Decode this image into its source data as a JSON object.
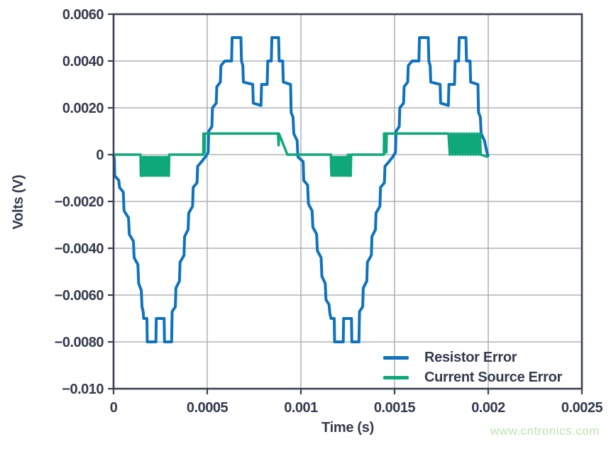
{
  "page": {
    "background": "#FFFFFF"
  },
  "watermark": {
    "text": "www.cntronics.com",
    "color": "#BDE5AE"
  },
  "chart_data": {
    "type": "line",
    "title": "",
    "xlabel": "Time (s)",
    "ylabel": "Volts (V)",
    "xlim": [
      0,
      0.0025
    ],
    "ylim": [
      -0.01,
      0.006
    ],
    "grid": true,
    "legend_position": "lower-right",
    "axis_color": "#3C4254",
    "grid_color": "#A0A4AF",
    "text_color": "#353B4F",
    "xticks": [
      {
        "v": 0,
        "label": "0"
      },
      {
        "v": 0.0005,
        "label": "0.0005"
      },
      {
        "v": 0.001,
        "label": "0.001"
      },
      {
        "v": 0.0015,
        "label": "0.0015"
      },
      {
        "v": 0.002,
        "label": "0.002"
      },
      {
        "v": 0.0025,
        "label": "0.0025"
      }
    ],
    "yticks": [
      {
        "v": 0.006,
        "label": "0.0060"
      },
      {
        "v": 0.004,
        "label": "0.0040"
      },
      {
        "v": 0.002,
        "label": "0.0020"
      },
      {
        "v": 0,
        "label": "0"
      },
      {
        "v": -0.002,
        "label": "−0.0020"
      },
      {
        "v": -0.004,
        "label": "−0.0040"
      },
      {
        "v": -0.006,
        "label": "−0.0060"
      },
      {
        "v": -0.008,
        "label": "−0.0080"
      },
      {
        "v": -0.01,
        "label": "−0.010"
      }
    ],
    "series": [
      {
        "name": "Resistor Error",
        "slug": "resistor-error",
        "color": "#0F72BD",
        "width": 4,
        "points": [
          [
            0,
            0
          ],
          [
            4e-06,
            -0.0002
          ],
          [
            6e-06,
            -0.0009
          ],
          [
            2.8e-05,
            -0.0011
          ],
          [
            3.2e-05,
            -0.0014
          ],
          [
            5.2e-05,
            -0.0016
          ],
          [
            5.6e-05,
            -0.0024
          ],
          [
            8e-05,
            -0.0027
          ],
          [
            8.4e-05,
            -0.0034
          ],
          [
            0.000106,
            -0.0037
          ],
          [
            0.00011,
            -0.0044
          ],
          [
            0.00013,
            -0.0047
          ],
          [
            0.000134,
            -0.0055
          ],
          [
            0.000148,
            -0.0058
          ],
          [
            0.000152,
            -0.0065
          ],
          [
            0.000158,
            -0.0067
          ],
          [
            0.000161,
            -0.007
          ],
          [
            0.000178,
            -0.007
          ],
          [
            0.00018,
            -0.008
          ],
          [
            0.000226,
            -0.008
          ],
          [
            0.000228,
            -0.007
          ],
          [
            0.00027,
            -0.007
          ],
          [
            0.000272,
            -0.008
          ],
          [
            0.00031,
            -0.008
          ],
          [
            0.000313,
            -0.0067
          ],
          [
            0.00033,
            -0.0065
          ],
          [
            0.000333,
            -0.0057
          ],
          [
            0.000352,
            -0.0054
          ],
          [
            0.000355,
            -0.0046
          ],
          [
            0.000376,
            -0.0043
          ],
          [
            0.000379,
            -0.0035
          ],
          [
            0.000398,
            -0.0032
          ],
          [
            0.000401,
            -0.0025
          ],
          [
            0.000422,
            -0.0022
          ],
          [
            0.000425,
            -0.0014
          ],
          [
            0.000446,
            -0.0012
          ],
          [
            0.000449,
            -0.0005
          ],
          [
            0.00047,
            -0.0003
          ],
          [
            0.00049,
            -0.0001
          ],
          [
            0.000505,
            0.0001
          ],
          [
            0.000508,
            0.001
          ],
          [
            0.000525,
            0.0012
          ],
          [
            0.000528,
            0.002
          ],
          [
            0.000548,
            0.0022
          ],
          [
            0.000551,
            0.0029
          ],
          [
            0.00057,
            0.0031
          ],
          [
            0.000573,
            0.0038
          ],
          [
            0.000594,
            0.004
          ],
          [
            0.00063,
            0.004
          ],
          [
            0.000633,
            0.005
          ],
          [
            0.00068,
            0.005
          ],
          [
            0.000683,
            0.004
          ],
          [
            0.00069,
            0.0038
          ],
          [
            0.000693,
            0.0031
          ],
          [
            0.000743,
            0.003
          ],
          [
            0.000746,
            0.0022
          ],
          [
            0.000787,
            0.0021
          ],
          [
            0.00079,
            0.003
          ],
          [
            0.00082,
            0.003
          ],
          [
            0.000823,
            0.004
          ],
          [
            0.000842,
            0.004
          ],
          [
            0.000845,
            0.005
          ],
          [
            0.000881,
            0.005
          ],
          [
            0.000884,
            0.004
          ],
          [
            0.000903,
            0.004
          ],
          [
            0.000906,
            0.0031
          ],
          [
            0.000945,
            0.003
          ],
          [
            0.000948,
            0.0018
          ],
          [
            0.000958,
            0.0016
          ],
          [
            0.000962,
            0.0009
          ],
          [
            0.00098,
            0.0006
          ],
          [
            0.000984,
            -0.0001
          ],
          [
            0.001012,
            -0.0003
          ],
          [
            0.001015,
            -0.0011
          ],
          [
            0.001036,
            -0.0013
          ],
          [
            0.00104,
            -0.0021
          ],
          [
            0.00106,
            -0.0024
          ],
          [
            0.001064,
            -0.0031
          ],
          [
            0.001084,
            -0.0034
          ],
          [
            0.001088,
            -0.0041
          ],
          [
            0.001108,
            -0.0044
          ],
          [
            0.001112,
            -0.0052
          ],
          [
            0.00113,
            -0.0055
          ],
          [
            0.001134,
            -0.0062
          ],
          [
            0.00115,
            -0.0064
          ],
          [
            0.001155,
            -0.0068
          ],
          [
            0.001161,
            -0.007
          ],
          [
            0.001178,
            -0.007
          ],
          [
            0.00118,
            -0.008
          ],
          [
            0.001226,
            -0.008
          ],
          [
            0.001228,
            -0.007
          ],
          [
            0.00127,
            -0.007
          ],
          [
            0.001272,
            -0.008
          ],
          [
            0.00131,
            -0.008
          ],
          [
            0.001313,
            -0.0067
          ],
          [
            0.00133,
            -0.0065
          ],
          [
            0.001333,
            -0.0057
          ],
          [
            0.001352,
            -0.0054
          ],
          [
            0.001355,
            -0.0046
          ],
          [
            0.001376,
            -0.0043
          ],
          [
            0.001379,
            -0.0035
          ],
          [
            0.001398,
            -0.0032
          ],
          [
            0.001401,
            -0.0025
          ],
          [
            0.001422,
            -0.0022
          ],
          [
            0.001425,
            -0.0014
          ],
          [
            0.001446,
            -0.0012
          ],
          [
            0.001449,
            -0.0005
          ],
          [
            0.00147,
            -0.0003
          ],
          [
            0.00149,
            -0.0001
          ],
          [
            0.001505,
            0.0001
          ],
          [
            0.001508,
            0.001
          ],
          [
            0.001525,
            0.0012
          ],
          [
            0.001528,
            0.002
          ],
          [
            0.001548,
            0.0022
          ],
          [
            0.001551,
            0.0029
          ],
          [
            0.00157,
            0.0031
          ],
          [
            0.001573,
            0.0038
          ],
          [
            0.001594,
            0.004
          ],
          [
            0.00163,
            0.004
          ],
          [
            0.001633,
            0.005
          ],
          [
            0.00168,
            0.005
          ],
          [
            0.001683,
            0.004
          ],
          [
            0.00169,
            0.0038
          ],
          [
            0.001693,
            0.0031
          ],
          [
            0.001743,
            0.003
          ],
          [
            0.001746,
            0.0022
          ],
          [
            0.001787,
            0.0021
          ],
          [
            0.00179,
            0.003
          ],
          [
            0.00182,
            0.003
          ],
          [
            0.001823,
            0.004
          ],
          [
            0.001842,
            0.004
          ],
          [
            0.001845,
            0.005
          ],
          [
            0.001881,
            0.005
          ],
          [
            0.001884,
            0.004
          ],
          [
            0.001903,
            0.004
          ],
          [
            0.001906,
            0.0031
          ],
          [
            0.001945,
            0.003
          ],
          [
            0.001948,
            0.0018
          ],
          [
            0.001958,
            0.0016
          ],
          [
            0.001962,
            0.0009
          ],
          [
            0.00198,
            0.0006
          ],
          [
            0.00199,
            0.0002
          ],
          [
            0.002,
            -0.0001
          ]
        ]
      },
      {
        "name": "Current Source Error",
        "slug": "current-source-error",
        "color": "#0FA87A",
        "width": 3.5,
        "points": [
          [
            0,
            0
          ],
          [
            0.000144,
            0
          ],
          [
            0.000146,
            -0.0009
          ],
          [
            0.000156,
            -0.0009
          ],
          [
            0.000158,
            -0.0001
          ],
          [
            0.000163,
            -0.0001
          ],
          [
            0.000165,
            -0.0009
          ],
          [
            0.000171,
            -0.0001
          ],
          [
            0.000177,
            -0.0009
          ],
          [
            0.000183,
            -0.0001
          ],
          [
            0.000189,
            -0.0009
          ],
          [
            0.000195,
            -0.0001
          ],
          [
            0.000201,
            -0.0009
          ],
          [
            0.000207,
            -0.0001
          ],
          [
            0.000213,
            -0.0009
          ],
          [
            0.000219,
            -0.0001
          ],
          [
            0.000225,
            -0.0009
          ],
          [
            0.000231,
            -0.0001
          ],
          [
            0.000237,
            -0.0009
          ],
          [
            0.000243,
            -0.0001
          ],
          [
            0.000249,
            -0.0009
          ],
          [
            0.000255,
            -0.0001
          ],
          [
            0.000261,
            -0.0009
          ],
          [
            0.000267,
            -0.0001
          ],
          [
            0.000273,
            -0.0009
          ],
          [
            0.000279,
            -0.0001
          ],
          [
            0.000285,
            -0.0009
          ],
          [
            0.000291,
            -0.0001
          ],
          [
            0.000295,
            -0.0009
          ],
          [
            0.000297,
            0
          ],
          [
            0.000479,
            0
          ],
          [
            0.00048,
            0.0009
          ],
          [
            0.000483,
            0.0009
          ],
          [
            0.000484,
            0.0001
          ],
          [
            0.000486,
            0.0001
          ],
          [
            0.000487,
            0.0009
          ],
          [
            0.000878,
            0.0009
          ],
          [
            0.000881,
            0.0004
          ],
          [
            0.000883,
            0.0009
          ],
          [
            0.000928,
            0
          ],
          [
            0.00116,
            0
          ],
          [
            0.001163,
            -0.0009
          ],
          [
            0.001169,
            -0.0001
          ],
          [
            0.001175,
            -0.0009
          ],
          [
            0.001181,
            -0.0001
          ],
          [
            0.001187,
            -0.0009
          ],
          [
            0.001193,
            -0.0001
          ],
          [
            0.001199,
            -0.0009
          ],
          [
            0.001205,
            -0.0001
          ],
          [
            0.001211,
            -0.0009
          ],
          [
            0.001217,
            -0.0001
          ],
          [
            0.001223,
            -0.0009
          ],
          [
            0.001229,
            -0.0001
          ],
          [
            0.001235,
            -0.0009
          ],
          [
            0.001241,
            -0.0001
          ],
          [
            0.001247,
            -0.0009
          ],
          [
            0.00125,
            -0.0001
          ],
          [
            0.001252,
            0
          ],
          [
            0.001255,
            0
          ],
          [
            0.001256,
            -0.0009
          ],
          [
            0.001258,
            -0.0001
          ],
          [
            0.001264,
            -0.0001
          ],
          [
            0.001266,
            -0.0009
          ],
          [
            0.001268,
            0
          ],
          [
            0.001443,
            0
          ],
          [
            0.001444,
            0.0009
          ],
          [
            0.001446,
            0.0002
          ],
          [
            0.001449,
            0.0009
          ],
          [
            0.001452,
            0.0009
          ],
          [
            0.001453,
            0.0001
          ],
          [
            0.001456,
            0.0001
          ],
          [
            0.001458,
            0.0009
          ],
          [
            0.001788,
            0.0009
          ],
          [
            0.001795,
            0
          ],
          [
            0.001802,
            0.0009
          ],
          [
            0.001809,
            0
          ],
          [
            0.001816,
            0.0009
          ],
          [
            0.001823,
            0
          ],
          [
            0.00183,
            0.0009
          ],
          [
            0.001837,
            0
          ],
          [
            0.001844,
            0.0009
          ],
          [
            0.001851,
            0
          ],
          [
            0.001858,
            0.0009
          ],
          [
            0.001865,
            0
          ],
          [
            0.001872,
            0.0009
          ],
          [
            0.001879,
            0
          ],
          [
            0.001886,
            0.0009
          ],
          [
            0.001893,
            0
          ],
          [
            0.0019,
            0.0009
          ],
          [
            0.001907,
            0
          ],
          [
            0.001914,
            0.0009
          ],
          [
            0.001921,
            0
          ],
          [
            0.001928,
            0.0009
          ],
          [
            0.001935,
            0
          ],
          [
            0.001942,
            0.0009
          ],
          [
            0.001949,
            0
          ],
          [
            0.001956,
            0.0009
          ],
          [
            0.00196,
            0
          ],
          [
            0.002,
            -0.0001
          ]
        ]
      }
    ]
  }
}
